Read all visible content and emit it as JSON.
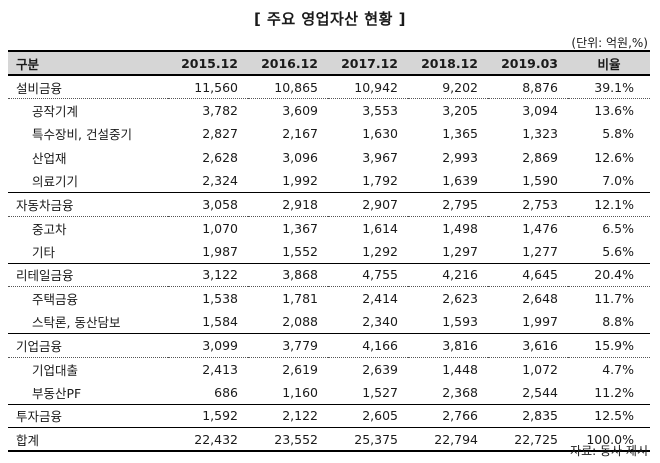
{
  "title": "[ 주요 영업자산 현황 ]",
  "unit_note": "(단위: 억원,%)",
  "source_note": "자료: 동사 제시",
  "table": {
    "headers": [
      "구분",
      "2015.12",
      "2016.12",
      "2017.12",
      "2018.12",
      "2019.03",
      "비율"
    ],
    "rows": [
      {
        "label": "설비금융",
        "values": [
          "11,560",
          "10,865",
          "10,942",
          "9,202",
          "8,876",
          "39.1%"
        ]
      },
      {
        "label": "공작기계",
        "values": [
          "3,782",
          "3,609",
          "3,553",
          "3,205",
          "3,094",
          "13.6%"
        ]
      },
      {
        "label": "특수장비, 건설중기",
        "values": [
          "2,827",
          "2,167",
          "1,630",
          "1,365",
          "1,323",
          "5.8%"
        ]
      },
      {
        "label": "산업재",
        "values": [
          "2,628",
          "3,096",
          "3,967",
          "2,993",
          "2,869",
          "12.6%"
        ]
      },
      {
        "label": "의료기기",
        "values": [
          "2,324",
          "1,992",
          "1,792",
          "1,639",
          "1,590",
          "7.0%"
        ]
      },
      {
        "label": "자동차금융",
        "values": [
          "3,058",
          "2,918",
          "2,907",
          "2,795",
          "2,753",
          "12.1%"
        ]
      },
      {
        "label": "중고차",
        "values": [
          "1,070",
          "1,367",
          "1,614",
          "1,498",
          "1,476",
          "6.5%"
        ]
      },
      {
        "label": "기타",
        "values": [
          "1,987",
          "1,552",
          "1,292",
          "1,297",
          "1,277",
          "5.6%"
        ]
      },
      {
        "label": "리테일금융",
        "values": [
          "3,122",
          "3,868",
          "4,755",
          "4,216",
          "4,645",
          "20.4%"
        ]
      },
      {
        "label": "주택금융",
        "values": [
          "1,538",
          "1,781",
          "2,414",
          "2,623",
          "2,648",
          "11.7%"
        ]
      },
      {
        "label": "스탁론, 동산담보",
        "values": [
          "1,584",
          "2,088",
          "2,340",
          "1,593",
          "1,997",
          "8.8%"
        ]
      },
      {
        "label": "기업금융",
        "values": [
          "3,099",
          "3,779",
          "4,166",
          "3,816",
          "3,616",
          "15.9%"
        ]
      },
      {
        "label": "기업대출",
        "values": [
          "2,413",
          "2,619",
          "2,639",
          "1,448",
          "1,072",
          "4.7%"
        ]
      },
      {
        "label": "부동산PF",
        "values": [
          "686",
          "1,160",
          "1,527",
          "2,368",
          "2,544",
          "11.2%"
        ]
      },
      {
        "label": "투자금융",
        "values": [
          "1,592",
          "2,122",
          "2,605",
          "2,766",
          "2,835",
          "12.5%"
        ]
      },
      {
        "label": "합계",
        "values": [
          "22,432",
          "23,552",
          "25,375",
          "22,794",
          "22,725",
          "100.0%"
        ]
      }
    ]
  }
}
